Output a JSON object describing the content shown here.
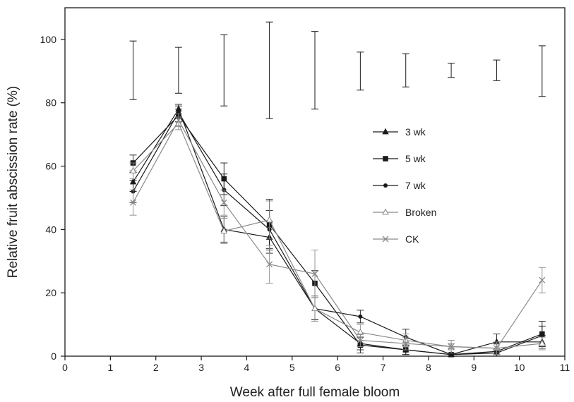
{
  "chart_data": {
    "type": "line",
    "title": "",
    "xlabel": "Week after full female bloom",
    "ylabel": "Relative fruit abscission rate (%)",
    "xlim": [
      0,
      11
    ],
    "ylim": [
      0,
      110
    ],
    "x_ticks": [
      0,
      1,
      2,
      3,
      4,
      5,
      6,
      7,
      8,
      9,
      10,
      11
    ],
    "y_ticks": [
      0,
      20,
      40,
      60,
      80,
      100
    ],
    "grid": false,
    "legend_position": "right-center",
    "x": [
      1.5,
      2.5,
      3.5,
      4.5,
      5.5,
      6.5,
      7.5,
      8.5,
      9.5,
      10.5
    ],
    "series": [
      {
        "name": "3 wk",
        "marker": "triangle-filled",
        "color": "#1a1a1a",
        "values": [
          55,
          78,
          40,
          37.5,
          15,
          4,
          2,
          0.5,
          4.5,
          4.5
        ],
        "err": [
          3,
          1.5,
          4,
          5,
          3.5,
          2,
          1.5,
          0.5,
          2.5,
          2
        ]
      },
      {
        "name": "5 wk",
        "marker": "square-filled",
        "color": "#1a1a1a",
        "values": [
          61,
          76,
          56,
          41.5,
          23,
          3.5,
          2,
          0.5,
          1.5,
          7
        ],
        "err": [
          2.5,
          2,
          5,
          8,
          4,
          2.5,
          1.5,
          0.5,
          1,
          4
        ]
      },
      {
        "name": "7 wk",
        "marker": "circle-filled",
        "color": "#1a1a1a",
        "values": [
          52,
          77,
          52.5,
          40,
          15,
          12.5,
          6,
          0.5,
          1,
          6.5
        ],
        "err": [
          3.5,
          2,
          5,
          6,
          3.5,
          2,
          2.5,
          0.5,
          1,
          3
        ]
      },
      {
        "name": "Broken",
        "marker": "triangle-open",
        "color": "#8a8a8a",
        "values": [
          58.5,
          73.5,
          39.5,
          43,
          15,
          7.5,
          5,
          3,
          2.5,
          4
        ],
        "err": [
          2.5,
          2,
          4,
          6,
          4,
          2.5,
          2,
          1,
          1.5,
          2
        ]
      },
      {
        "name": "CK",
        "marker": "x",
        "color": "#8a8a8a",
        "values": [
          48.5,
          74.5,
          48.5,
          29,
          26,
          5,
          4,
          3,
          2.5,
          24
        ],
        "err": [
          4,
          2,
          4,
          6,
          7.5,
          2,
          2,
          2,
          2,
          4
        ]
      }
    ],
    "envelope": {
      "description_free": true,
      "upper": [
        99.5,
        97.5,
        101.5,
        105.5,
        102.5,
        96,
        95.5,
        92.5,
        93.5,
        98
      ],
      "lower": [
        81,
        83,
        79,
        75,
        78,
        84,
        85,
        88,
        87,
        82
      ]
    }
  }
}
